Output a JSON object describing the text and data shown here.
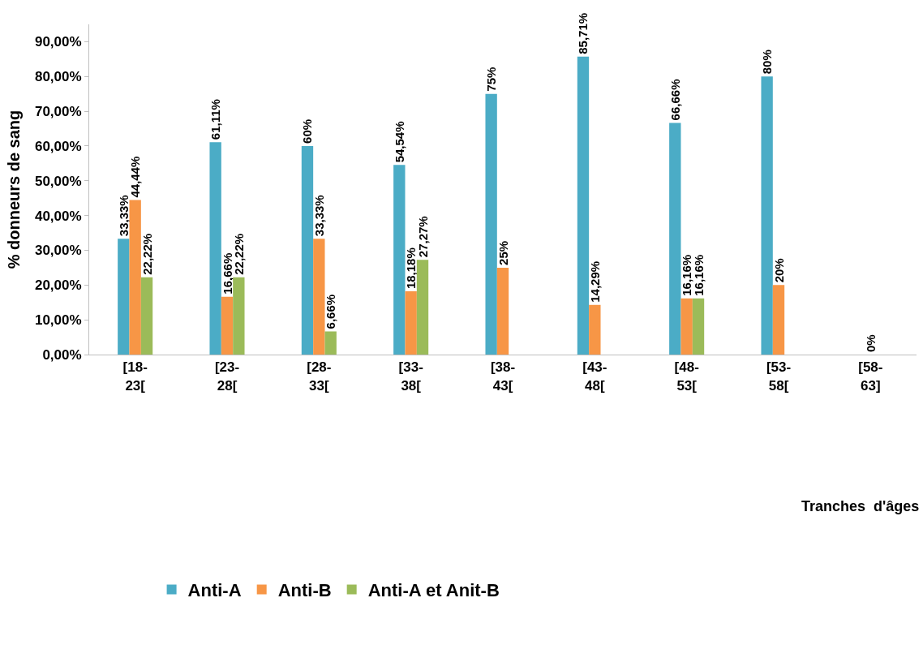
{
  "chart_data": {
    "type": "bar",
    "annotations": [
      "Tranches  d'âges"
    ],
    "ylabel": "% donneurs de sang",
    "categories": [
      "[18-23[",
      "[23-28[",
      "[28-33[",
      "[33-38[",
      "[38-43[",
      "[43-48[",
      "[48-53[",
      "[53-58[",
      "[58-63]"
    ],
    "series": [
      {
        "name": "Anti-A",
        "color": "#4bacc6",
        "values": [
          33.33,
          61.11,
          60,
          54.54,
          75,
          85.71,
          66.66,
          80,
          null
        ],
        "value_labels": [
          "33,33%",
          "61,11%",
          "60%",
          "54,54%",
          "75%",
          "85,71%",
          "66,66%",
          "80%",
          null
        ]
      },
      {
        "name": "Anti-B",
        "color": "#f79646",
        "values": [
          44.44,
          16.66,
          33.33,
          18.18,
          25,
          14.29,
          16.16,
          20,
          0
        ],
        "value_labels": [
          "44,44%",
          "16,66%",
          "33,33%",
          "18,18%",
          "25%",
          "14,29%",
          "16,16%",
          "20%",
          "0%"
        ]
      },
      {
        "name": "Anti-A et Anit-B",
        "color": "#9bbb59",
        "values": [
          22.22,
          22.22,
          6.66,
          27.27,
          null,
          null,
          16.16,
          null,
          null
        ],
        "value_labels": [
          "22,22%",
          "22,22%",
          "6,66%",
          "27,27%",
          null,
          null,
          "16,16%",
          null,
          null
        ]
      }
    ],
    "ylim": [
      0,
      95
    ],
    "yticks": [
      {
        "value": 0,
        "label": "0,00%"
      },
      {
        "value": 10,
        "label": "10,00%"
      },
      {
        "value": 20,
        "label": "20,00%"
      },
      {
        "value": 30,
        "label": "30,00%"
      },
      {
        "value": 40,
        "label": "40,00%"
      },
      {
        "value": 50,
        "label": "50,00%"
      },
      {
        "value": 60,
        "label": "60,00%"
      },
      {
        "value": 70,
        "label": "70,00%"
      },
      {
        "value": 80,
        "label": "80,00%"
      },
      {
        "value": 90,
        "label": "90,00%"
      }
    ],
    "grid": false,
    "legend": "bottom"
  }
}
